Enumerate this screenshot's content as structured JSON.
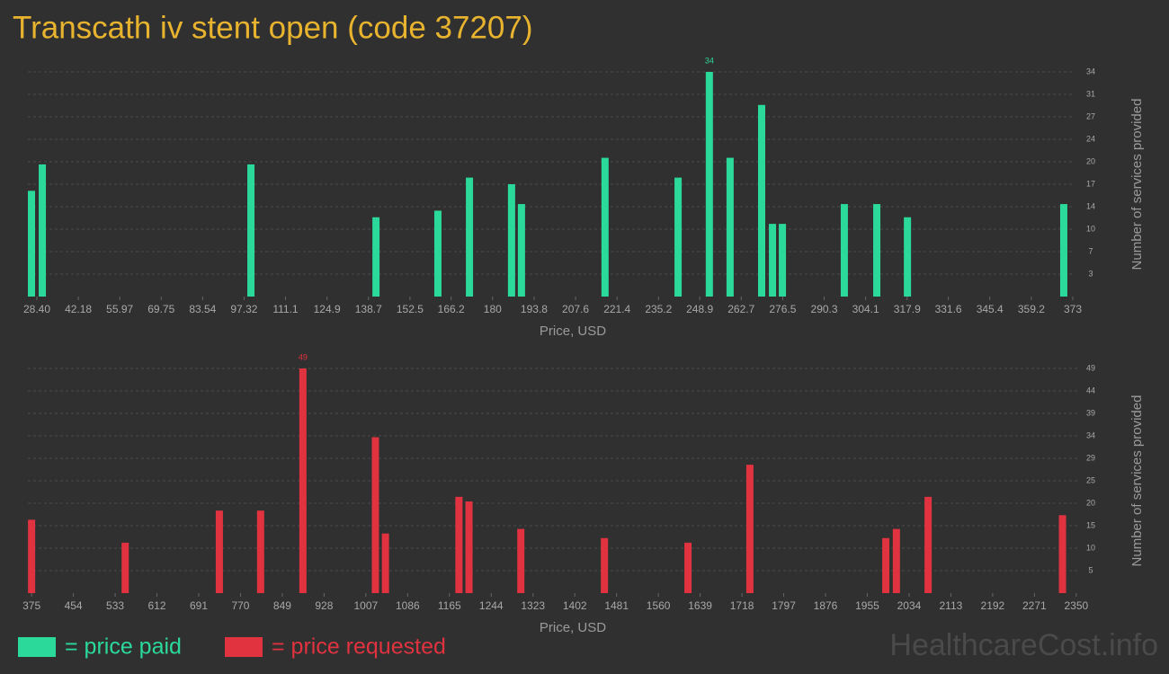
{
  "title": "Transcath iv stent open (code 37207)",
  "watermark": "HealthcareCost.info",
  "legend": [
    {
      "label": "= price paid",
      "color": "#2bd99b"
    },
    {
      "label": "= price requested",
      "color": "#e0323f"
    }
  ],
  "chart_data": [
    {
      "type": "bar",
      "color": "#2bd99b",
      "xlabel": "Price, USD",
      "ylabel": "Number of services provided",
      "x": [
        26.6,
        30.2,
        99.6,
        141.2,
        161.8,
        172.3,
        186.3,
        189.6,
        217.4,
        241.7,
        252.1,
        259.0,
        269.5,
        273.1,
        276.4,
        297.0,
        307.8,
        318.0,
        370.0
      ],
      "values": [
        16,
        20,
        20,
        12,
        13,
        18,
        17,
        14,
        21,
        18,
        34,
        21,
        29,
        11,
        11,
        14,
        14,
        12,
        14
      ],
      "xlim": [
        25.4,
        373.6
      ],
      "xticks": [
        {
          "value": 28.4,
          "label": "28.40"
        },
        42.18,
        55.97,
        69.75,
        83.54,
        97.32,
        111.1,
        124.9,
        138.7,
        152.5,
        166.2,
        180,
        193.8,
        207.6,
        221.4,
        235.2,
        248.9,
        262.7,
        276.5,
        290.3,
        304.1,
        317.9,
        331.6,
        345.4,
        359.2,
        373
      ],
      "ylim": [
        0,
        34
      ],
      "yticks": [
        {
          "value": 3.4,
          "label": "3"
        },
        {
          "value": 6.8,
          "label": "7"
        },
        {
          "value": 10.2,
          "label": "10"
        },
        {
          "value": 13.6,
          "label": "14"
        },
        17,
        {
          "value": 20.4,
          "label": "20"
        },
        {
          "value": 23.8,
          "label": "24"
        },
        {
          "value": 27.2,
          "label": "27"
        },
        {
          "value": 30.6,
          "label": "31"
        },
        34
      ],
      "grid": true
    },
    {
      "type": "bar",
      "color": "#e0323f",
      "xlabel": "Price, USD",
      "ylabel": "Number of services provided",
      "x": [
        375,
        552,
        730,
        808,
        888,
        1025,
        1044,
        1183,
        1202,
        1300,
        1458,
        1616,
        1733,
        1990,
        2010,
        2070,
        2324
      ],
      "values": [
        16,
        11,
        18,
        18,
        49,
        34,
        13,
        21,
        20,
        14,
        12,
        11,
        28,
        12,
        14,
        21,
        17
      ],
      "xlim": [
        368,
        2352
      ],
      "xticks": [
        375,
        454,
        533,
        612,
        691,
        770,
        849,
        928,
        1007,
        1086,
        1165,
        1244,
        1323,
        1402,
        1481,
        1560,
        1639,
        1718,
        1797,
        1876,
        1955,
        2034,
        2113,
        2192,
        2271,
        2350
      ],
      "ylim": [
        0,
        49
      ],
      "yticks": [
        {
          "value": 4.9,
          "label": "5"
        },
        {
          "value": 9.8,
          "label": "10"
        },
        {
          "value": 14.7,
          "label": "15"
        },
        {
          "value": 19.6,
          "label": "20"
        },
        {
          "value": 24.5,
          "label": "25"
        },
        {
          "value": 29.4,
          "label": "29"
        },
        {
          "value": 34.3,
          "label": "34"
        },
        {
          "value": 39.2,
          "label": "39"
        },
        {
          "value": 44.1,
          "label": "44"
        },
        49
      ],
      "grid": true
    }
  ]
}
